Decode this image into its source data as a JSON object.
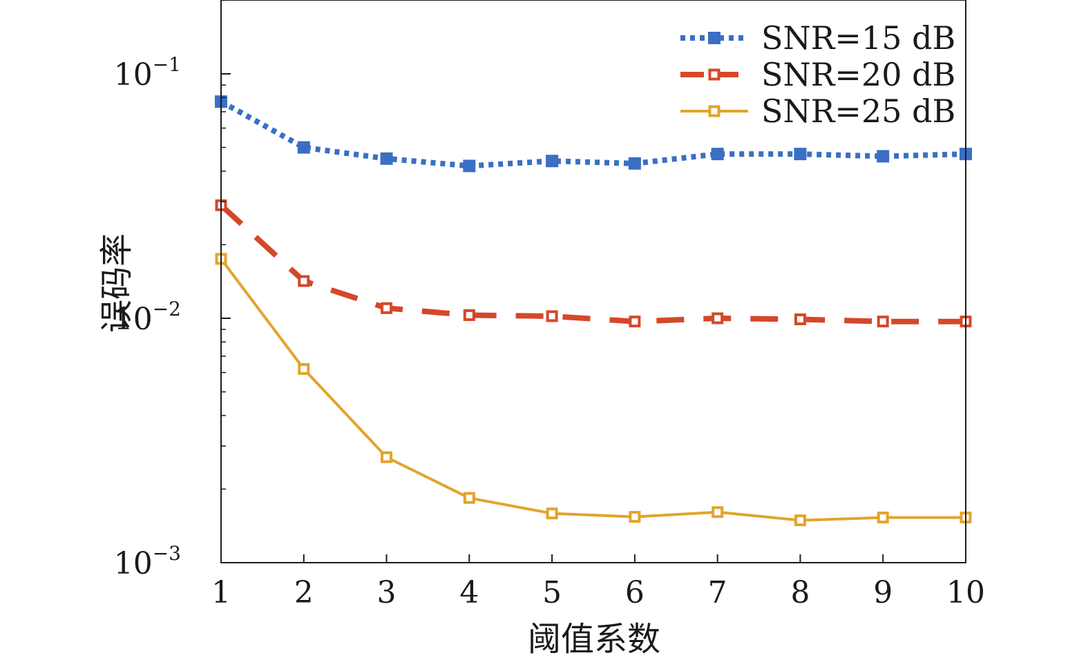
{
  "chart_data": {
    "type": "line",
    "title": "",
    "xlabel": "阈值系数",
    "ylabel": "误码率",
    "y_scale": "log",
    "xlim": [
      1,
      10
    ],
    "ylim": [
      0.001,
      0.2
    ],
    "x_ticks": [
      "1",
      "2",
      "3",
      "4",
      "5",
      "6",
      "7",
      "8",
      "9",
      "10"
    ],
    "y_ticks": [
      {
        "value": 0.1,
        "base": "10",
        "exp": "−1"
      },
      {
        "value": 0.01,
        "base": "10",
        "exp": "−2"
      },
      {
        "value": 0.001,
        "base": "10",
        "exp": "−3"
      }
    ],
    "grid": false,
    "legend_position": "top-right",
    "x": [
      1,
      2,
      3,
      4,
      5,
      6,
      7,
      8,
      9,
      10
    ],
    "series": [
      {
        "name": "SNR=15 dB",
        "color": "#3a6fc4",
        "line_style": "dotted",
        "marker": "square-filled",
        "values": [
          0.077,
          0.05,
          0.045,
          0.042,
          0.044,
          0.043,
          0.047,
          0.047,
          0.046,
          0.047
        ]
      },
      {
        "name": "SNR=20 dB",
        "color": "#d4482a",
        "line_style": "dashed",
        "marker": "square-open",
        "values": [
          0.029,
          0.0142,
          0.011,
          0.0103,
          0.0102,
          0.0097,
          0.01,
          0.0099,
          0.0097,
          0.0097
        ]
      },
      {
        "name": "SNR=25 dB",
        "color": "#e2a42c",
        "line_style": "solid",
        "marker": "square-open",
        "values": [
          0.0175,
          0.0062,
          0.0027,
          0.00184,
          0.00159,
          0.00154,
          0.00161,
          0.00149,
          0.00153,
          0.00153
        ]
      }
    ]
  }
}
